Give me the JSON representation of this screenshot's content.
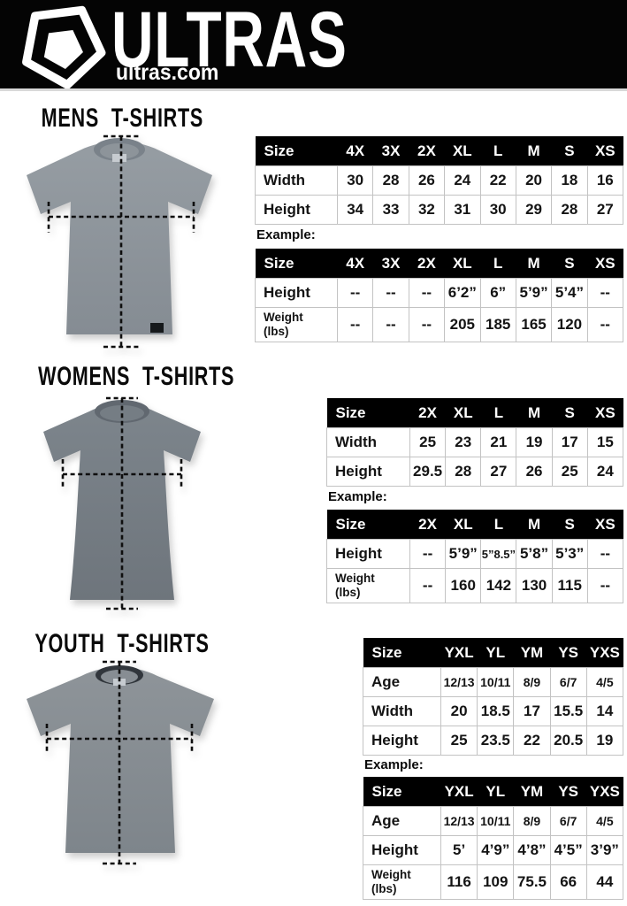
{
  "header": {
    "brand": "ULTRAS",
    "site": "ultras.com",
    "logo_icon": "ultras-shield-icon",
    "bg_color": "#000000"
  },
  "colors": {
    "table_header_bg": "#000000",
    "table_header_text": "#ffffff",
    "cell_border": "#c3c3c3",
    "shirt_gray_mens": "#8e959b",
    "shirt_gray_womens": "#757d84",
    "shirt_gray_youth": "#878d93",
    "page_bg": "#ffffff"
  },
  "sections": [
    {
      "id": "mens",
      "title": "MENS T-SHIRTS",
      "example_label": "Example:",
      "size_table": {
        "header": [
          "Size",
          "4X",
          "3X",
          "2X",
          "XL",
          "L",
          "M",
          "S",
          "XS"
        ],
        "rows": [
          {
            "label": "Width",
            "values": [
              "30",
              "28",
              "26",
              "24",
              "22",
              "20",
              "18",
              "16"
            ]
          },
          {
            "label": "Height",
            "values": [
              "34",
              "33",
              "32",
              "31",
              "30",
              "29",
              "28",
              "27"
            ]
          }
        ]
      },
      "example_table": {
        "header": [
          "Size",
          "4X",
          "3X",
          "2X",
          "XL",
          "L",
          "M",
          "S",
          "XS"
        ],
        "rows": [
          {
            "label": "Height",
            "values": [
              "--",
              "--",
              "--",
              "6’2”",
              "6”",
              "5’9”",
              "5’4”",
              "--"
            ]
          },
          {
            "label": "Weight",
            "label2": "(lbs)",
            "values": [
              "--",
              "--",
              "--",
              "205",
              "185",
              "165",
              "120",
              "--"
            ]
          }
        ]
      }
    },
    {
      "id": "womens",
      "title": "WOMENS T-SHIRTS",
      "example_label": "Example:",
      "size_table": {
        "header": [
          "Size",
          "2X",
          "XL",
          "L",
          "M",
          "S",
          "XS"
        ],
        "rows": [
          {
            "label": "Width",
            "values": [
              "25",
              "23",
              "21",
              "19",
              "17",
              "15"
            ]
          },
          {
            "label": "Height",
            "values": [
              "29.5",
              "28",
              "27",
              "26",
              "25",
              "24"
            ]
          }
        ]
      },
      "example_table": {
        "header": [
          "Size",
          "2X",
          "XL",
          "L",
          "M",
          "S",
          "XS"
        ],
        "rows": [
          {
            "label": "Height",
            "values": [
              "--",
              "5’9”",
              "5”8.5”",
              "5’8”",
              "5’3”",
              "--"
            ]
          },
          {
            "label": "Weight",
            "label2": "(lbs)",
            "values": [
              "--",
              "160",
              "142",
              "130",
              "115",
              "--"
            ]
          }
        ]
      }
    },
    {
      "id": "youth",
      "title": "YOUTH T-SHIRTS",
      "example_label": "Example:",
      "size_table": {
        "header": [
          "Size",
          "YXL",
          "YL",
          "YM",
          "YS",
          "YXS"
        ],
        "rows": [
          {
            "label": "Age",
            "small": true,
            "values": [
              "12/13",
              "10/11",
              "8/9",
              "6/7",
              "4/5"
            ]
          },
          {
            "label": "Width",
            "values": [
              "20",
              "18.5",
              "17",
              "15.5",
              "14"
            ]
          },
          {
            "label": "Height",
            "values": [
              "25",
              "23.5",
              "22",
              "20.5",
              "19"
            ]
          }
        ]
      },
      "example_table": {
        "header": [
          "Size",
          "YXL",
          "YL",
          "YM",
          "YS",
          "YXS"
        ],
        "rows": [
          {
            "label": "Age",
            "small": true,
            "values": [
              "12/13",
              "10/11",
              "8/9",
              "6/7",
              "4/5"
            ]
          },
          {
            "label": "Height",
            "values": [
              "5’",
              "4’9”",
              "4’8”",
              "4’5”",
              "3’9”"
            ]
          },
          {
            "label": "Weight",
            "label2": "(lbs)",
            "values": [
              "116",
              "109",
              "75.5",
              "66",
              "44"
            ]
          }
        ]
      }
    }
  ]
}
